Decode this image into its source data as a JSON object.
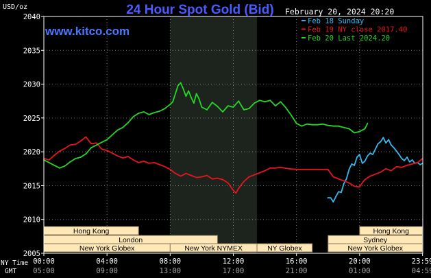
{
  "header": {
    "title": "24 Hour Spot Gold (Bid)",
    "unit_label": "USD/oz",
    "website": "www.kitco.com",
    "datetime": "February 20, 2024 20:20"
  },
  "legend": [
    {
      "label": "Feb 18 Sunday",
      "color": "#36b8ee"
    },
    {
      "label": "Feb 19 NY close 2017.40",
      "color": "#e8141e"
    },
    {
      "label": "Feb 20 Last 2024.20",
      "color": "#26d626"
    }
  ],
  "colors": {
    "background": "#000000",
    "plot_border": "#ffffff",
    "grid": "#ffffff",
    "highlight_band": "#1d241d",
    "title": "#4a5cff",
    "session_box": "#ffe8b8",
    "session_border": "#8a7a5a"
  },
  "sessions": {
    "row1": [
      {
        "name": "Hong Kong",
        "start": "00:00",
        "end": "06:00"
      },
      {
        "name": "Hong Kong",
        "start": "20:00",
        "end": "23:59"
      }
    ],
    "row2": [
      {
        "name": "London",
        "start": "00:00",
        "end": "11:00"
      },
      {
        "name": "Sydney",
        "start": "18:00",
        "end": "23:59"
      }
    ],
    "row3": [
      {
        "name": "New York Globex",
        "start": "00:00",
        "end": "08:00"
      },
      {
        "name": "New York NYMEX",
        "start": "08:00",
        "end": "13:30"
      },
      {
        "name": "NY Globex",
        "start": "13:30",
        "end": "17:00"
      },
      {
        "name": "New York Globex",
        "start": "18:00",
        "end": "23:59"
      }
    ]
  },
  "timezone_labels": {
    "ny": "NY Time",
    "gmt": "GMT"
  },
  "x_ticks": [
    {
      "ny": "00:00",
      "gmt": "05:00",
      "h": 0
    },
    {
      "ny": "04:00",
      "gmt": "09:00",
      "h": 4
    },
    {
      "ny": "08:00",
      "gmt": "13:00",
      "h": 8
    },
    {
      "ny": "12:00",
      "gmt": "17:00",
      "h": 12
    },
    {
      "ny": "16:00",
      "gmt": "21:00",
      "h": 16
    },
    {
      "ny": "20:00",
      "gmt": "01:00",
      "h": 20
    },
    {
      "ny": "23:59",
      "gmt": "04:59",
      "h": 23.983
    }
  ],
  "chart_data": {
    "type": "line",
    "title": "24 Hour Spot Gold (Bid)",
    "ylabel": "USD/oz",
    "xlabel": "NY Time",
    "xlim": [
      "00:00",
      "23:59"
    ],
    "ylim": [
      2005.0,
      2040.0
    ],
    "yticks": [
      2005.0,
      2010.0,
      2015.0,
      2020.0,
      2025.0,
      2030.0,
      2035.0,
      2040.0
    ],
    "grid": true,
    "highlight": {
      "start": "08:00",
      "end": "13:30"
    },
    "legend_position": "top-right",
    "series": [
      {
        "name": "Feb 18 Sunday",
        "color": "#36b8ee",
        "points": [
          [
            "17:59",
            2013.2
          ],
          [
            "18:10",
            2013.2
          ],
          [
            "18:20",
            2012.6
          ],
          [
            "18:30",
            2013.4
          ],
          [
            "18:40",
            2014.1
          ],
          [
            "18:50",
            2014.0
          ],
          [
            "19:00",
            2015.3
          ],
          [
            "19:10",
            2016.0
          ],
          [
            "19:20",
            2017.4
          ],
          [
            "19:30",
            2018.2
          ],
          [
            "19:40",
            2018.0
          ],
          [
            "19:50",
            2019.2
          ],
          [
            "20:00",
            2019.6
          ],
          [
            "20:10",
            2018.3
          ],
          [
            "20:20",
            2018.6
          ],
          [
            "20:30",
            2019.4
          ],
          [
            "20:40",
            2019.8
          ],
          [
            "20:50",
            2019.6
          ],
          [
            "21:00",
            2020.4
          ],
          [
            "21:10",
            2021.2
          ],
          [
            "21:20",
            2021.5
          ],
          [
            "21:30",
            2022.1
          ],
          [
            "21:40",
            2021.3
          ],
          [
            "21:50",
            2021.8
          ],
          [
            "22:00",
            2021.0
          ],
          [
            "22:10",
            2020.6
          ],
          [
            "22:20",
            2020.1
          ],
          [
            "22:30",
            2019.6
          ],
          [
            "22:40",
            2019.0
          ],
          [
            "22:50",
            2018.7
          ],
          [
            "23:00",
            2019.2
          ],
          [
            "23:10",
            2018.5
          ],
          [
            "23:20",
            2018.8
          ],
          [
            "23:30",
            2018.3
          ],
          [
            "23:40",
            2018.4
          ],
          [
            "23:50",
            2018.1
          ],
          [
            "23:59",
            2018.3
          ]
        ]
      },
      {
        "name": "Feb 19 NY close 2017.40",
        "color": "#e8141e",
        "points": [
          [
            "00:00",
            2019.0
          ],
          [
            "00:20",
            2018.8
          ],
          [
            "00:40",
            2019.5
          ],
          [
            "01:00",
            2020.1
          ],
          [
            "01:20",
            2020.5
          ],
          [
            "01:40",
            2021.0
          ],
          [
            "02:00",
            2021.1
          ],
          [
            "02:20",
            2021.6
          ],
          [
            "02:40",
            2022.2
          ],
          [
            "03:00",
            2021.2
          ],
          [
            "03:20",
            2021.3
          ],
          [
            "03:40",
            2020.4
          ],
          [
            "04:00",
            2020.2
          ],
          [
            "04:20",
            2019.8
          ],
          [
            "04:40",
            2019.4
          ],
          [
            "05:00",
            2019.1
          ],
          [
            "05:20",
            2019.3
          ],
          [
            "05:40",
            2018.8
          ],
          [
            "06:00",
            2018.4
          ],
          [
            "06:20",
            2018.6
          ],
          [
            "06:40",
            2018.3
          ],
          [
            "07:00",
            2018.4
          ],
          [
            "07:20",
            2018.1
          ],
          [
            "07:40",
            2017.8
          ],
          [
            "08:00",
            2017.4
          ],
          [
            "08:20",
            2016.8
          ],
          [
            "08:40",
            2016.4
          ],
          [
            "09:00",
            2016.8
          ],
          [
            "09:20",
            2016.5
          ],
          [
            "09:40",
            2016.2
          ],
          [
            "10:00",
            2016.3
          ],
          [
            "10:20",
            2016.5
          ],
          [
            "10:40",
            2016.0
          ],
          [
            "11:00",
            2016.1
          ],
          [
            "11:20",
            2015.9
          ],
          [
            "11:40",
            2015.4
          ],
          [
            "12:00",
            2014.3
          ],
          [
            "12:10",
            2013.9
          ],
          [
            "12:20",
            2014.6
          ],
          [
            "12:40",
            2015.6
          ],
          [
            "13:00",
            2016.3
          ],
          [
            "13:20",
            2016.6
          ],
          [
            "13:40",
            2016.9
          ],
          [
            "14:00",
            2017.2
          ],
          [
            "14:20",
            2017.6
          ],
          [
            "14:40",
            2017.6
          ],
          [
            "15:00",
            2017.7
          ],
          [
            "15:30",
            2017.5
          ],
          [
            "16:00",
            2017.4
          ],
          [
            "16:30",
            2017.4
          ],
          [
            "17:00",
            2017.4
          ],
          [
            "17:30",
            2017.4
          ],
          [
            "17:59",
            2017.4
          ],
          [
            "18:20",
            2016.3
          ],
          [
            "18:40",
            2016.0
          ],
          [
            "19:00",
            2015.7
          ],
          [
            "19:20",
            2015.4
          ],
          [
            "19:40",
            2014.9
          ],
          [
            "20:00",
            2014.8
          ],
          [
            "20:10",
            2015.4
          ],
          [
            "20:20",
            2015.9
          ],
          [
            "20:40",
            2016.4
          ],
          [
            "21:00",
            2016.7
          ],
          [
            "21:20",
            2017.0
          ],
          [
            "21:40",
            2017.5
          ],
          [
            "22:00",
            2017.2
          ],
          [
            "22:20",
            2017.8
          ],
          [
            "22:40",
            2017.7
          ],
          [
            "23:00",
            2018.0
          ],
          [
            "23:20",
            2018.2
          ],
          [
            "23:40",
            2018.4
          ],
          [
            "23:59",
            2019.0
          ]
        ]
      },
      {
        "name": "Feb 20 Last 2024.20",
        "color": "#26d626",
        "points": [
          [
            "00:00",
            2018.8
          ],
          [
            "00:20",
            2018.4
          ],
          [
            "00:40",
            2018.0
          ],
          [
            "01:00",
            2017.6
          ],
          [
            "01:20",
            2017.9
          ],
          [
            "01:40",
            2018.5
          ],
          [
            "02:00",
            2019.0
          ],
          [
            "02:20",
            2019.2
          ],
          [
            "02:40",
            2019.7
          ],
          [
            "03:00",
            2020.6
          ],
          [
            "03:20",
            2021.0
          ],
          [
            "03:40",
            2021.4
          ],
          [
            "04:00",
            2021.8
          ],
          [
            "04:20",
            2022.5
          ],
          [
            "04:40",
            2023.2
          ],
          [
            "05:00",
            2023.6
          ],
          [
            "05:20",
            2024.3
          ],
          [
            "05:40",
            2025.2
          ],
          [
            "06:00",
            2025.7
          ],
          [
            "06:20",
            2025.9
          ],
          [
            "06:40",
            2025.5
          ],
          [
            "07:00",
            2025.8
          ],
          [
            "07:20",
            2026.0
          ],
          [
            "07:40",
            2026.4
          ],
          [
            "08:00",
            2027.0
          ],
          [
            "08:10",
            2027.4
          ],
          [
            "08:20",
            2028.6
          ],
          [
            "08:30",
            2029.8
          ],
          [
            "08:40",
            2030.2
          ],
          [
            "08:50",
            2029.3
          ],
          [
            "09:00",
            2028.2
          ],
          [
            "09:10",
            2029.0
          ],
          [
            "09:20",
            2028.0
          ],
          [
            "09:30",
            2027.2
          ],
          [
            "09:40",
            2028.6
          ],
          [
            "09:50",
            2027.8
          ],
          [
            "10:00",
            2026.6
          ],
          [
            "10:20",
            2026.2
          ],
          [
            "10:40",
            2027.3
          ],
          [
            "11:00",
            2026.7
          ],
          [
            "11:20",
            2025.9
          ],
          [
            "11:40",
            2026.8
          ],
          [
            "12:00",
            2026.6
          ],
          [
            "12:20",
            2027.5
          ],
          [
            "12:40",
            2026.2
          ],
          [
            "13:00",
            2026.4
          ],
          [
            "13:20",
            2027.2
          ],
          [
            "13:40",
            2027.6
          ],
          [
            "14:00",
            2027.4
          ],
          [
            "14:20",
            2027.6
          ],
          [
            "14:40",
            2026.8
          ],
          [
            "15:00",
            2027.4
          ],
          [
            "15:20",
            2026.5
          ],
          [
            "15:40",
            2025.4
          ],
          [
            "16:00",
            2024.2
          ],
          [
            "16:20",
            2023.8
          ],
          [
            "16:40",
            2024.1
          ],
          [
            "17:00",
            2024.0
          ],
          [
            "17:20",
            2024.0
          ],
          [
            "17:40",
            2024.1
          ],
          [
            "18:00",
            2023.9
          ],
          [
            "18:20",
            2023.8
          ],
          [
            "18:40",
            2023.8
          ],
          [
            "19:00",
            2023.6
          ],
          [
            "19:20",
            2023.4
          ],
          [
            "19:40",
            2022.8
          ],
          [
            "20:00",
            2023.0
          ],
          [
            "20:20",
            2023.4
          ],
          [
            "20:30",
            2024.2
          ]
        ]
      }
    ]
  }
}
